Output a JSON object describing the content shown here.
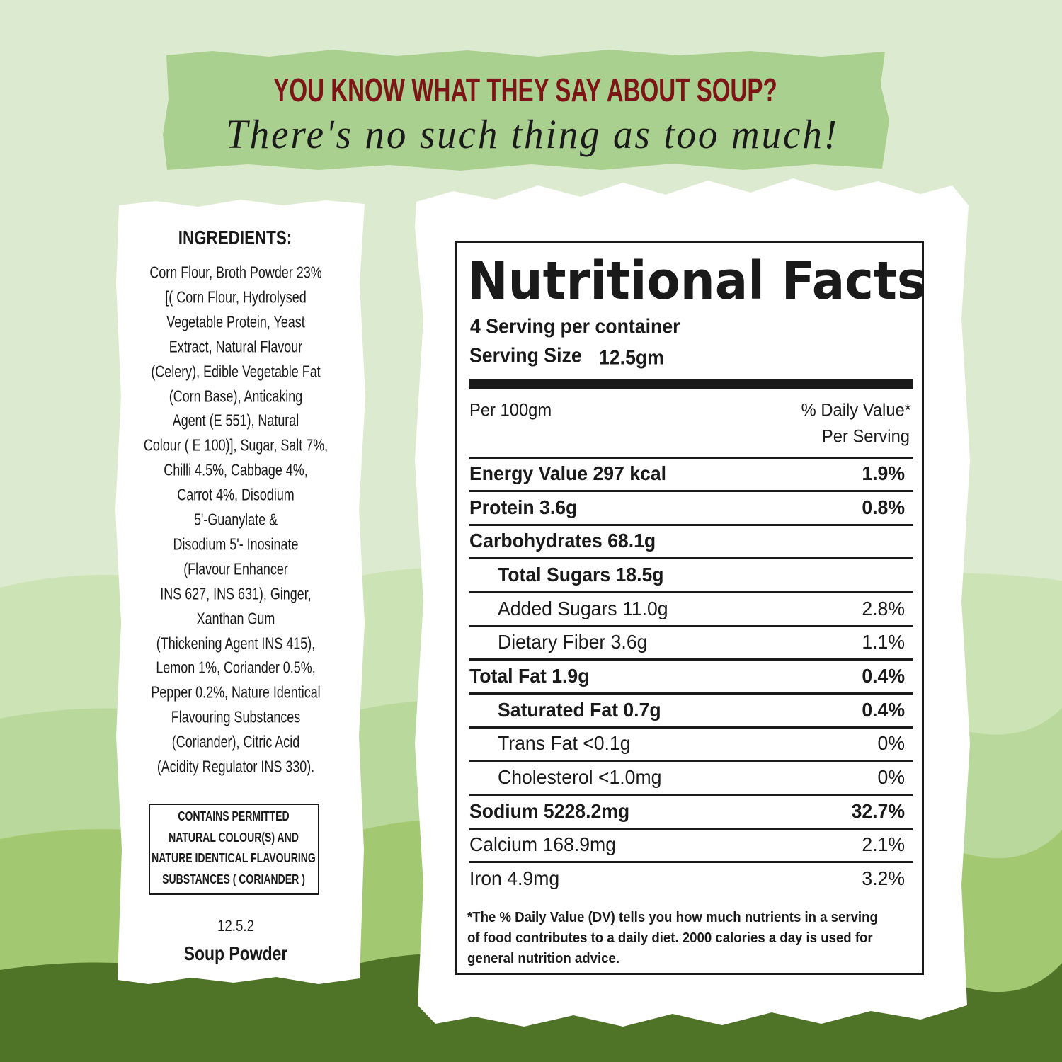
{
  "header": {
    "title": "YOU KNOW WHAT THEY SAY ABOUT SOUP?",
    "tagline": "There's no such thing as too much!"
  },
  "ingredients": {
    "heading": "INGREDIENTS:",
    "lines": [
      "Corn Flour, Broth Powder 23%",
      "[( Corn Flour, Hydrolysed",
      "Vegetable Protein, Yeast",
      "Extract, Natural Flavour",
      "(Celery), Edible Vegetable Fat",
      "(Corn Base), Anticaking",
      "Agent (E 551), Natural",
      "Colour ( E 100)], Sugar, Salt 7%,",
      "Chilli 4.5%, Cabbage 4%,",
      "Carrot 4%, Disodium",
      "5'-Guanylate &",
      "Disodium 5'- Inosinate",
      "(Flavour Enhancer",
      "INS 627, INS 631), Ginger,",
      "Xanthan Gum",
      "(Thickening Agent INS 415),",
      "Lemon 1%, Coriander 0.5%,",
      "Pepper 0.2%, Nature Identical",
      "Flavouring Substances",
      "(Coriander), Citric Acid",
      "(Acidity Regulator INS 330)."
    ],
    "notice": [
      "CONTAINS PERMITTED",
      "NATURAL COLOUR(S) AND",
      "NATURE IDENTICAL FLAVOURING",
      "SUBSTANCES ( CORIANDER )"
    ],
    "code": "12.5.2",
    "product": "Soup Powder"
  },
  "nutrition": {
    "title": "Nutritional Facts",
    "servings": "4 Serving per container",
    "serving_size_label": "Serving Size",
    "serving_size": "12.5gm",
    "per": "Per 100gm",
    "dv_header": [
      "% Daily Value*",
      "Per Serving"
    ],
    "rows": [
      {
        "name": "Energy Value 297 kcal",
        "dv": "1.9%",
        "bold": true,
        "indent": false
      },
      {
        "name": "Protein 3.6g",
        "dv": "0.8%",
        "bold": true,
        "indent": false
      },
      {
        "name": "Carbohydrates 68.1g",
        "bold": true,
        "indent": false
      },
      {
        "name": "Total Sugars 18.5g",
        "bold": true,
        "indent": true
      },
      {
        "name": "Added Sugars 11.0g",
        "dv": "2.8%",
        "bold": false,
        "indent": true
      },
      {
        "name": "Dietary Fiber 3.6g",
        "dv": "1.1%",
        "bold": false,
        "indent": true
      },
      {
        "name": "Total Fat 1.9g",
        "dv": "0.4%",
        "bold": true,
        "indent": false
      },
      {
        "name": "Saturated Fat 0.7g",
        "dv": "0.4%",
        "bold": true,
        "indent": true
      },
      {
        "name": "Trans Fat <0.1g",
        "dv": "0%",
        "bold": false,
        "indent": true
      },
      {
        "name": "Cholesterol <1.0mg",
        "dv": "0%",
        "bold": false,
        "indent": true
      },
      {
        "name": "Sodium 5228.2mg",
        "dv": "32.7%",
        "bold": true,
        "indent": false
      },
      {
        "name": "Calcium 168.9mg",
        "dv": "2.1%",
        "bold": false,
        "indent": false
      },
      {
        "name": "Iron 4.9mg",
        "dv": "3.2%",
        "bold": false,
        "indent": false
      }
    ],
    "footnote": [
      "*The % Daily Value (DV) tells you how much nutrients in a serving",
      "of food contributes to a daily diet. 2000 calories a day is used for",
      "general nutrition advice."
    ]
  }
}
